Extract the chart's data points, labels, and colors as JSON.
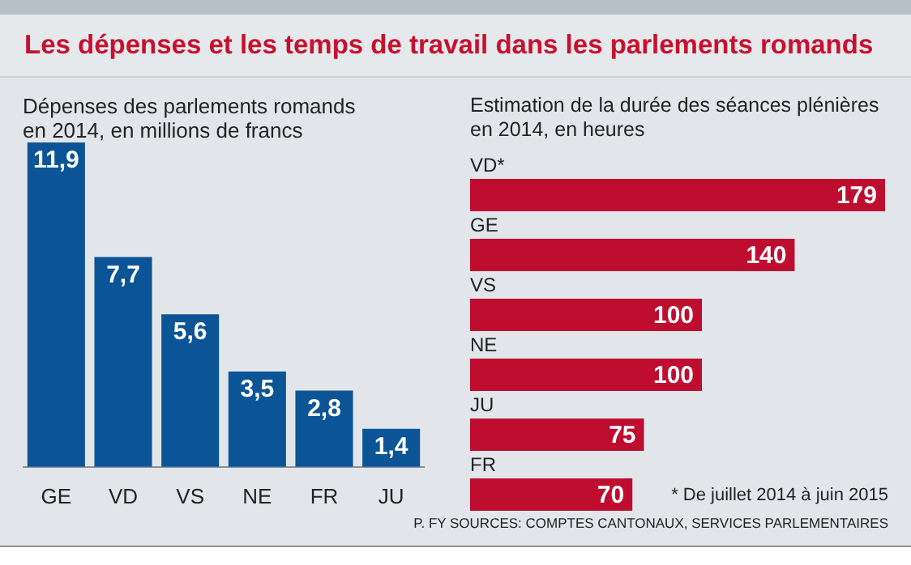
{
  "chart_data": [
    {
      "type": "bar",
      "title": "Les dépenses et les temps de travail dans les parlements romands",
      "subtitle": "Dépenses des parlements romands en 2014, en millions de francs",
      "categories": [
        "GE",
        "VD",
        "VS",
        "NE",
        "FR",
        "JU"
      ],
      "values": [
        11.9,
        7.7,
        5.6,
        3.5,
        2.8,
        1.4
      ],
      "value_labels": [
        "11,9",
        "7,7",
        "5,6",
        "3,5",
        "2,8",
        "1,4"
      ],
      "color": "#0b5597"
    },
    {
      "type": "bar",
      "orientation": "horizontal",
      "title": "Estimation de la durée des séances plénières en 2014, en heures",
      "categories": [
        "VD*",
        "GE",
        "VS",
        "NE",
        "JU",
        "FR"
      ],
      "values": [
        179,
        140,
        100,
        100,
        75,
        70
      ],
      "data_labels": true,
      "color": "#bf0d30",
      "annotations": [
        "* De juillet 2014 à juin 2015",
        "P. FY SOURCES: COMPTES CANTONAUX, SERVICES PARLEMENTAIRES"
      ]
    }
  ]
}
